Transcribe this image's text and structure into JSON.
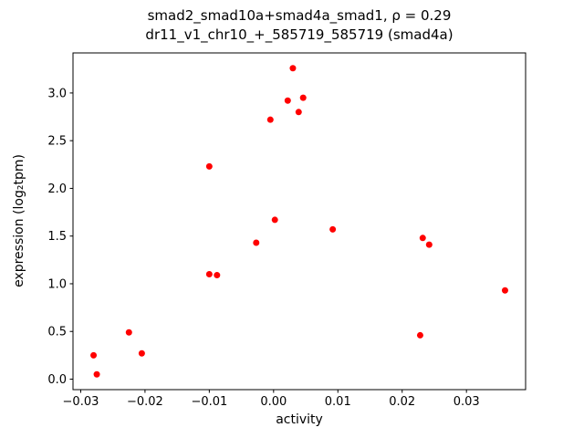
{
  "chart_data": {
    "type": "scatter",
    "title_line1": "smad2_smad10a+smad4a_smad1, ρ = 0.29",
    "title_line2": "dr11_v1_chr10_+_585719_585719 (smad4a)",
    "xlabel": "activity",
    "ylabel": "expression (log₂tpm)",
    "marker_color": "#ff0000",
    "marker_radius_px": 3.5,
    "grid": false,
    "legend": null,
    "xlim": [
      -0.0312,
      0.0392
    ],
    "ylim": [
      -0.11,
      3.42
    ],
    "xticks": [
      -0.03,
      -0.02,
      -0.01,
      0,
      0.01,
      0.02,
      0.03
    ],
    "yticks": [
      0,
      0.5,
      1,
      1.5,
      2,
      2.5,
      3
    ],
    "points": [
      [
        -0.028,
        0.25
      ],
      [
        -0.0275,
        0.05
      ],
      [
        -0.0225,
        0.49
      ],
      [
        -0.0205,
        0.27
      ],
      [
        -0.01,
        2.23
      ],
      [
        -0.01,
        1.1
      ],
      [
        -0.0088,
        1.09
      ],
      [
        -0.0027,
        1.43
      ],
      [
        -0.0005,
        2.72
      ],
      [
        0.0002,
        1.67
      ],
      [
        0.0022,
        2.92
      ],
      [
        0.003,
        3.26
      ],
      [
        0.0039,
        2.8
      ],
      [
        0.0046,
        2.95
      ],
      [
        0.0092,
        1.57
      ],
      [
        0.0228,
        0.46
      ],
      [
        0.0232,
        1.48
      ],
      [
        0.0242,
        1.41
      ],
      [
        0.036,
        0.93
      ]
    ]
  }
}
